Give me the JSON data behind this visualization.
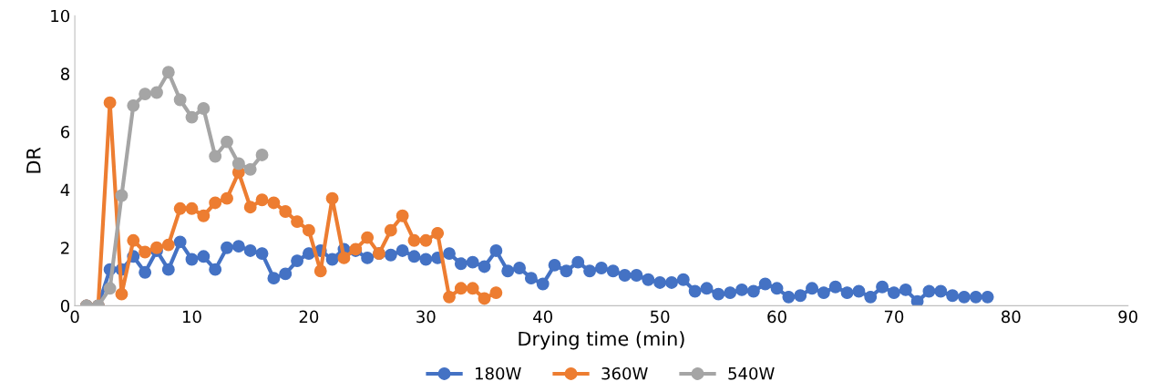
{
  "chart_data": {
    "type": "line",
    "xlabel": "Drying time (min)",
    "ylabel": "DR",
    "xlim": [
      0,
      90
    ],
    "xticks": [
      0,
      10,
      20,
      30,
      40,
      50,
      60,
      70,
      80,
      90
    ],
    "ylim": [
      0,
      10
    ],
    "yticks": [
      0,
      2,
      4,
      6,
      8,
      10
    ],
    "marker": "circle",
    "legend": "bottom",
    "grid": false,
    "series": [
      {
        "name": "180W",
        "color": "#4472c4",
        "x": [
          1,
          2,
          3,
          4,
          5,
          6,
          7,
          8,
          9,
          10,
          11,
          12,
          13,
          14,
          15,
          16,
          17,
          18,
          19,
          20,
          21,
          22,
          23,
          24,
          25,
          26,
          27,
          28,
          29,
          30,
          31,
          32,
          33,
          34,
          35,
          36,
          37,
          38,
          39,
          40,
          41,
          42,
          43,
          44,
          45,
          46,
          47,
          48,
          49,
          50,
          51,
          52,
          53,
          54,
          55,
          56,
          57,
          58,
          59,
          60,
          61,
          62,
          63,
          64,
          65,
          66,
          67,
          68,
          69,
          70,
          71,
          72,
          73,
          74,
          75,
          76,
          77,
          78
        ],
        "values": [
          0,
          0,
          1.25,
          1.25,
          1.7,
          1.15,
          1.9,
          1.25,
          2.2,
          1.6,
          1.7,
          1.25,
          2.0,
          2.05,
          1.9,
          1.8,
          0.95,
          1.1,
          1.55,
          1.8,
          1.9,
          1.6,
          1.95,
          1.9,
          1.65,
          1.8,
          1.75,
          1.9,
          1.7,
          1.6,
          1.65,
          1.8,
          1.45,
          1.5,
          1.35,
          1.9,
          1.2,
          1.3,
          0.95,
          0.75,
          1.4,
          1.2,
          1.5,
          1.2,
          1.3,
          1.2,
          1.05,
          1.05,
          0.9,
          0.8,
          0.8,
          0.9,
          0.5,
          0.6,
          0.4,
          0.45,
          0.55,
          0.5,
          0.75,
          0.6,
          0.3,
          0.35,
          0.6,
          0.45,
          0.65,
          0.45,
          0.5,
          0.3,
          0.65,
          0.45,
          0.55,
          0.15,
          0.5,
          0.5,
          0.35,
          0.3,
          0.3,
          0.3
        ]
      },
      {
        "name": "360W",
        "color": "#ed7d31",
        "x": [
          1,
          2,
          3,
          4,
          5,
          6,
          7,
          8,
          9,
          10,
          11,
          12,
          13,
          14,
          15,
          16,
          17,
          18,
          19,
          20,
          21,
          22,
          23,
          24,
          25,
          26,
          27,
          28,
          29,
          30,
          31,
          32,
          33,
          34,
          35,
          36
        ],
        "values": [
          0,
          0,
          7.0,
          0.4,
          2.25,
          1.85,
          2.0,
          2.1,
          3.35,
          3.35,
          3.1,
          3.55,
          3.7,
          4.6,
          3.4,
          3.65,
          3.55,
          3.25,
          2.9,
          2.6,
          1.2,
          3.7,
          1.65,
          1.95,
          2.35,
          1.8,
          2.6,
          3.1,
          2.25,
          2.25,
          2.5,
          0.3,
          0.6,
          0.6,
          0.25,
          0.45
        ]
      },
      {
        "name": "540W",
        "color": "#a5a5a5",
        "x": [
          1,
          2,
          3,
          4,
          5,
          6,
          7,
          8,
          9,
          10,
          11,
          12,
          13,
          14,
          15,
          16
        ],
        "values": [
          0,
          0,
          0.6,
          3.8,
          6.9,
          7.3,
          7.35,
          8.05,
          7.1,
          6.5,
          6.8,
          5.15,
          5.65,
          4.9,
          4.7,
          5.2
        ]
      }
    ]
  }
}
